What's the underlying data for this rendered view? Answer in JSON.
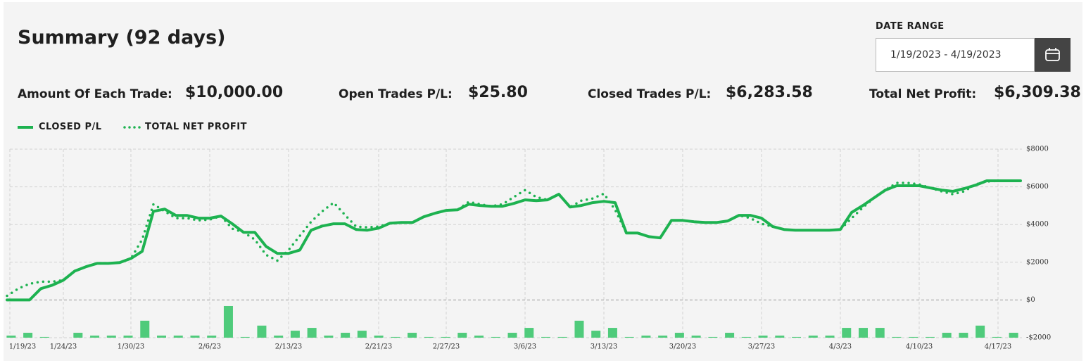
{
  "header": {
    "title": "Summary (92 days)",
    "date_range_label": "DATE RANGE",
    "date_range_value": "1/19/2023 - 4/19/2023"
  },
  "stats": [
    {
      "label": "Amount Of Each Trade:",
      "value": "$10,000.00"
    },
    {
      "label": "Open Trades P/L:",
      "value": "$25.80"
    },
    {
      "label": "Closed Trades P/L:",
      "value": "$6,283.58"
    },
    {
      "label": "Total Net Profit:",
      "value": "$6,309.38"
    }
  ],
  "chart_data": {
    "type": "line",
    "categories": [
      "1/19/23",
      null,
      null,
      null,
      null,
      "1/24/23",
      null,
      null,
      null,
      null,
      null,
      "1/30/23",
      null,
      null,
      null,
      null,
      null,
      null,
      "2/6/23",
      null,
      null,
      null,
      null,
      null,
      null,
      "2/13/23",
      null,
      null,
      null,
      null,
      null,
      null,
      null,
      "2/21/23",
      null,
      null,
      null,
      null,
      null,
      "2/27/23",
      null,
      null,
      null,
      null,
      null,
      null,
      "3/6/23",
      null,
      null,
      null,
      null,
      null,
      null,
      "3/13/23",
      null,
      null,
      null,
      null,
      null,
      null,
      "3/20/23",
      null,
      null,
      null,
      null,
      null,
      null,
      "3/27/23",
      null,
      null,
      null,
      null,
      null,
      null,
      "4/3/23",
      null,
      null,
      null,
      null,
      null,
      null,
      "4/10/23",
      null,
      null,
      null,
      null,
      null,
      null,
      "4/17/23",
      null,
      null
    ],
    "series": [
      {
        "name": "CLOSED P/L",
        "color": "#1db250",
        "style": "solid",
        "values": [
          0,
          0,
          0,
          600,
          780,
          1050,
          1530,
          1760,
          1940,
          1940,
          1980,
          2200,
          2580,
          4700,
          4820,
          4480,
          4480,
          4340,
          4340,
          4450,
          4040,
          3590,
          3590,
          2840,
          2470,
          2470,
          2650,
          3700,
          3920,
          4040,
          4040,
          3740,
          3700,
          3810,
          4070,
          4110,
          4110,
          4410,
          4600,
          4750,
          4780,
          5080,
          5010,
          4970,
          4970,
          5120,
          5310,
          5270,
          5310,
          5610,
          4930,
          5010,
          5160,
          5230,
          5160,
          3550,
          3550,
          3360,
          3290,
          4220,
          4220,
          4150,
          4110,
          4110,
          4190,
          4490,
          4490,
          4340,
          3890,
          3740,
          3700,
          3700,
          3700,
          3700,
          3740,
          4640,
          5010,
          5420,
          5830,
          6060,
          6060,
          6060,
          5940,
          5830,
          5760,
          5910,
          6090,
          6320,
          6320,
          6320,
          6320
        ]
      },
      {
        "name": "TOTAL NET PROFIT",
        "color": "#1db250",
        "style": "dotted",
        "values": [
          220,
          600,
          860,
          970,
          970,
          1050,
          1530,
          1760,
          1940,
          1940,
          1980,
          2200,
          3210,
          5080,
          4700,
          4340,
          4340,
          4220,
          4260,
          4450,
          3780,
          3590,
          3210,
          2390,
          2090,
          2650,
          3400,
          4150,
          4710,
          5160,
          4520,
          3890,
          3850,
          3890,
          4070,
          4110,
          4110,
          4410,
          4600,
          4750,
          4780,
          5200,
          5080,
          4970,
          5080,
          5460,
          5830,
          5460,
          5310,
          5610,
          4930,
          5270,
          5380,
          5640,
          4780,
          3550,
          3550,
          3360,
          3290,
          4220,
          4220,
          4150,
          4110,
          4110,
          4190,
          4490,
          4340,
          4040,
          3890,
          3740,
          3700,
          3700,
          3700,
          3700,
          3740,
          4340,
          4900,
          5420,
          5830,
          6210,
          6210,
          6130,
          5940,
          5760,
          5610,
          5760,
          6130,
          6280,
          6320,
          6320,
          6320
        ]
      }
    ],
    "bars": {
      "color": "#4fcb7b",
      "values": [
        -1890,
        -1740,
        -1960,
        -2000,
        -1740,
        -1890,
        -1890,
        -1890,
        -1100,
        -1890,
        -1890,
        -1890,
        -1890,
        -320,
        -1960,
        -1360,
        -1890,
        -1630,
        -1480,
        -1890,
        -1740,
        -1630,
        -1890,
        -1960,
        -1740,
        -1960,
        -1960,
        -1740,
        -1890,
        -1960,
        -1740,
        -1480,
        -1960,
        -1960,
        -1100,
        -1630,
        -1480,
        -1960,
        -1890,
        -1890,
        -1740,
        -1890,
        -1960,
        -1740,
        -1960,
        -1890,
        -1890,
        -1960,
        -1890,
        -1890,
        -1480,
        -1480,
        -1480,
        -1960,
        -1960,
        -1960,
        -1740,
        -1740,
        -1360,
        -1960,
        -1740
      ]
    },
    "ylim": [
      -2000,
      8000
    ],
    "yticks": [
      {
        "value": -2000,
        "label": "-$2000"
      },
      {
        "value": 0,
        "label": "$0"
      },
      {
        "value": 2000,
        "label": "$2000"
      },
      {
        "value": 4000,
        "label": "$4000"
      },
      {
        "value": 6000,
        "label": "$6000"
      },
      {
        "value": 8000,
        "label": "$8000"
      }
    ],
    "grid": true
  }
}
